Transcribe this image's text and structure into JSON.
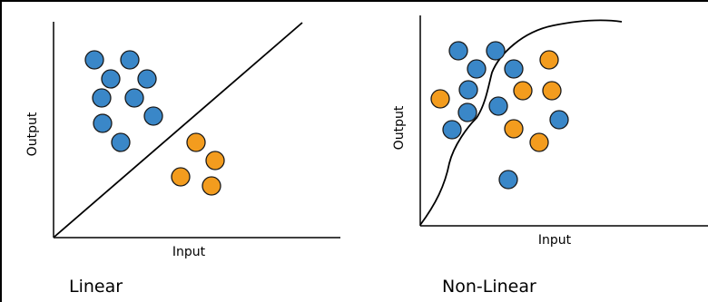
{
  "panels": [
    {
      "caption": "Linear",
      "xlabel": "Input",
      "ylabel": "Output",
      "boundary": "line",
      "blue_points": [
        [
          104,
          66
        ],
        [
          143,
          66
        ],
        [
          122,
          87
        ],
        [
          162,
          87
        ],
        [
          112,
          108
        ],
        [
          148,
          108
        ],
        [
          169,
          128
        ],
        [
          113,
          136
        ],
        [
          133,
          157
        ]
      ],
      "orange_points": [
        [
          216,
          157
        ],
        [
          237,
          177
        ],
        [
          199,
          195
        ],
        [
          233,
          205
        ]
      ]
    },
    {
      "caption": "Non-Linear",
      "xlabel": "Input",
      "ylabel": "Output",
      "boundary": "curve",
      "blue_points": [
        [
          505,
          56
        ],
        [
          546,
          56
        ],
        [
          525,
          76
        ],
        [
          566,
          76
        ],
        [
          516,
          99
        ],
        [
          549,
          117
        ],
        [
          515,
          124
        ],
        [
          498,
          143
        ],
        [
          616,
          132
        ],
        [
          560,
          198
        ]
      ],
      "orange_points": [
        [
          605,
          66
        ],
        [
          576,
          100
        ],
        [
          608,
          100
        ],
        [
          485,
          109
        ],
        [
          566,
          142
        ],
        [
          594,
          157
        ]
      ]
    }
  ],
  "colors": {
    "blue": "#3A87C8",
    "orange": "#F39C1E",
    "stroke": "#1a1a1a"
  }
}
